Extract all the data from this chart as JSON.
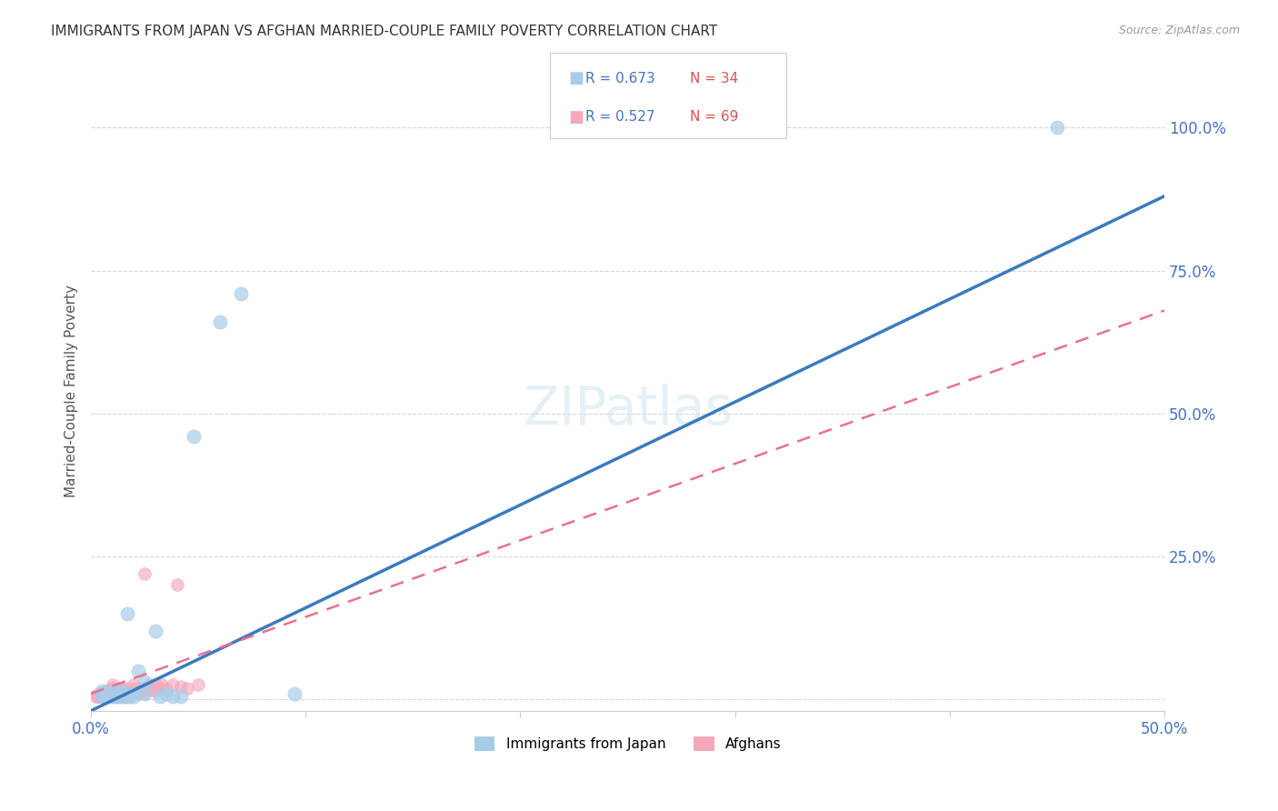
{
  "title": "IMMIGRANTS FROM JAPAN VS AFGHAN MARRIED-COUPLE FAMILY POVERTY CORRELATION CHART",
  "source": "Source: ZipAtlas.com",
  "ylabel": "Married-Couple Family Poverty",
  "legend_japan": "Immigrants from Japan",
  "legend_afghan": "Afghans",
  "R_japan": 0.673,
  "N_japan": 34,
  "R_afghan": 0.527,
  "N_afghan": 69,
  "color_japan": "#a8cce8",
  "color_afghan": "#f4a8bc",
  "color_japan_line": "#3a7abf",
  "color_afghan_line": "#e87090",
  "xlim": [
    0.0,
    0.5
  ],
  "ylim": [
    -0.02,
    1.1
  ],
  "xticks": [
    0.0,
    0.1,
    0.2,
    0.3,
    0.4,
    0.5
  ],
  "xtick_labels": [
    "0.0%",
    "",
    "",
    "",
    "",
    "50.0%"
  ],
  "yticks": [
    0.0,
    0.25,
    0.5,
    0.75,
    1.0
  ],
  "ytick_labels": [
    "",
    "25.0%",
    "50.0%",
    "75.0%",
    "100.0%"
  ],
  "japan_line_x0": 0.0,
  "japan_line_y0": -0.02,
  "japan_line_x1": 0.5,
  "japan_line_y1": 0.88,
  "afghan_line_x0": 0.0,
  "afghan_line_y0": 0.01,
  "afghan_line_x1": 0.5,
  "afghan_line_y1": 0.68,
  "japan_scatter_x": [
    0.005,
    0.005,
    0.005,
    0.007,
    0.008,
    0.01,
    0.01,
    0.01,
    0.012,
    0.012,
    0.013,
    0.013,
    0.014,
    0.015,
    0.015,
    0.016,
    0.017,
    0.018,
    0.019,
    0.02,
    0.02,
    0.022,
    0.025,
    0.025,
    0.03,
    0.032,
    0.035,
    0.038,
    0.042,
    0.048,
    0.06,
    0.07,
    0.095,
    0.45
  ],
  "japan_scatter_y": [
    0.005,
    0.01,
    0.015,
    0.008,
    0.005,
    0.005,
    0.01,
    0.015,
    0.005,
    0.01,
    0.005,
    0.015,
    0.008,
    0.005,
    0.01,
    0.005,
    0.15,
    0.005,
    0.01,
    0.005,
    0.01,
    0.05,
    0.01,
    0.03,
    0.12,
    0.005,
    0.01,
    0.005,
    0.005,
    0.46,
    0.66,
    0.71,
    0.01,
    1.0
  ],
  "afghan_scatter_x": [
    0.002,
    0.003,
    0.003,
    0.004,
    0.004,
    0.005,
    0.005,
    0.005,
    0.005,
    0.006,
    0.006,
    0.006,
    0.007,
    0.007,
    0.007,
    0.008,
    0.008,
    0.008,
    0.009,
    0.009,
    0.009,
    0.009,
    0.01,
    0.01,
    0.01,
    0.01,
    0.01,
    0.011,
    0.011,
    0.012,
    0.012,
    0.012,
    0.013,
    0.013,
    0.013,
    0.014,
    0.015,
    0.015,
    0.015,
    0.016,
    0.016,
    0.017,
    0.017,
    0.018,
    0.019,
    0.019,
    0.02,
    0.02,
    0.02,
    0.021,
    0.022,
    0.022,
    0.023,
    0.024,
    0.025,
    0.025,
    0.026,
    0.027,
    0.028,
    0.03,
    0.03,
    0.032,
    0.033,
    0.035,
    0.038,
    0.04,
    0.042,
    0.045,
    0.05
  ],
  "afghan_scatter_y": [
    0.005,
    0.005,
    0.008,
    0.005,
    0.01,
    0.005,
    0.008,
    0.01,
    0.012,
    0.005,
    0.008,
    0.012,
    0.005,
    0.01,
    0.015,
    0.005,
    0.01,
    0.015,
    0.005,
    0.008,
    0.012,
    0.018,
    0.005,
    0.01,
    0.015,
    0.02,
    0.025,
    0.008,
    0.012,
    0.005,
    0.01,
    0.018,
    0.008,
    0.015,
    0.02,
    0.01,
    0.005,
    0.012,
    0.018,
    0.008,
    0.015,
    0.01,
    0.02,
    0.012,
    0.008,
    0.015,
    0.01,
    0.018,
    0.025,
    0.012,
    0.01,
    0.02,
    0.015,
    0.02,
    0.012,
    0.22,
    0.018,
    0.025,
    0.018,
    0.015,
    0.025,
    0.02,
    0.025,
    0.018,
    0.025,
    0.2,
    0.022,
    0.02,
    0.025
  ]
}
